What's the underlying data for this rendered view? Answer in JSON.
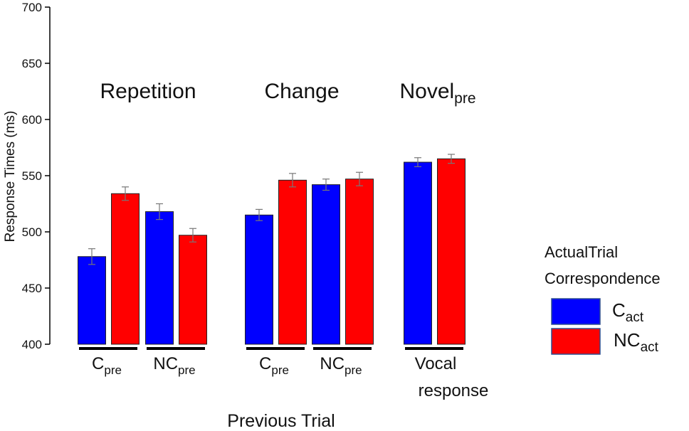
{
  "chart_data": {
    "type": "bar",
    "y_label": "Response Times (ms)",
    "x_label": "Previous Trial",
    "ylim": [
      400,
      700
    ],
    "yticks": [
      400,
      450,
      500,
      550,
      600,
      650,
      700
    ],
    "categories": [
      {
        "text": "C",
        "sub": "pre"
      },
      {
        "text": "NC",
        "sub": "pre"
      },
      {
        "text": "C",
        "sub": "pre"
      },
      {
        "text": "NC",
        "sub": "pre"
      },
      {
        "lines": [
          "Vocal",
          "response"
        ]
      }
    ],
    "groups": [
      {
        "text": "Repetition"
      },
      {
        "text": "Change"
      },
      {
        "text": "Novel",
        "sub": "pre"
      }
    ],
    "legend_title": [
      "ActualTrial",
      "Correspondence"
    ],
    "series": [
      {
        "name": "C",
        "name_sub": "act",
        "color": "#0000ff",
        "values": [
          478,
          518,
          515,
          542,
          562
        ],
        "errors": [
          7,
          7,
          5,
          5,
          4
        ]
      },
      {
        "name": "NC",
        "name_sub": "act",
        "color": "#ff0000",
        "values": [
          534,
          497,
          546,
          547,
          565
        ],
        "errors": [
          6,
          6,
          6,
          6,
          4
        ]
      }
    ]
  }
}
